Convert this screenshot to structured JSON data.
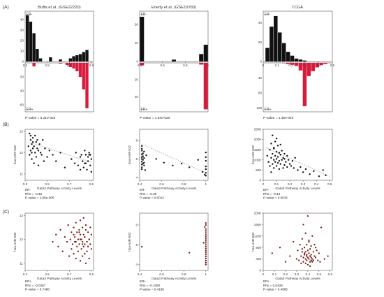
{
  "figure": {
    "panel_labels": [
      "(A)",
      "(B)",
      "(C)"
    ],
    "colors": {
      "er_neg": "#111111",
      "er_pos": "#d81b3c",
      "scatter_b": "#111111",
      "scatter_c": "#7a1a1a",
      "fit_line": "#9a9a9a"
    },
    "columns": [
      {
        "title": "Buffa et al. (GSE22220)"
      },
      {
        "title": "Enerly et al. (GSE19783)"
      },
      {
        "title": "TCGA"
      }
    ]
  },
  "chart_data": [
    {
      "type": "bar",
      "panel": "A",
      "column": 0,
      "top_label": "ER-",
      "bottom_label": "ER+",
      "bins_x": [
        0.32,
        0.35,
        0.38,
        0.41,
        0.44,
        0.47,
        0.5,
        0.53,
        0.56,
        0.59,
        0.62,
        0.65,
        0.68,
        0.71,
        0.74,
        0.77,
        0.8,
        0.83,
        0.86,
        0.89
      ],
      "er_neg": [
        44,
        38,
        27,
        12,
        3,
        0,
        0,
        4,
        0,
        0,
        2,
        0,
        0,
        3,
        5,
        6,
        7,
        9,
        11,
        0
      ],
      "er_pos": [
        0,
        0,
        5,
        0,
        0,
        0,
        0,
        0,
        0,
        0,
        1,
        0,
        3,
        6,
        8,
        12,
        20,
        38,
        65,
        0
      ],
      "x_ticks": [
        "0.3",
        "0.5",
        "0.7",
        "0.9"
      ],
      "x_tick_vals": [
        0.3,
        0.5,
        0.7,
        0.9
      ],
      "xlim": [
        0.3,
        0.92
      ],
      "top_y_ticks": [
        "40",
        "30",
        "20",
        "10",
        "0"
      ],
      "top_y_vals": [
        40,
        30,
        20,
        10,
        0
      ],
      "top_ylim": [
        0,
        48
      ],
      "bottom_y_ticks": [
        "20",
        "40",
        "60"
      ],
      "bottom_y_vals": [
        20,
        40,
        60
      ],
      "bottom_ylim": [
        0,
        70
      ],
      "pvalue": "P-value = 6.21e-025"
    },
    {
      "type": "bar",
      "panel": "A",
      "column": 1,
      "top_label": "ER-",
      "bottom_label": "ER+",
      "bins_x": [
        0.42,
        0.46,
        0.5,
        0.54,
        0.58,
        0.62,
        0.66,
        0.7,
        0.74,
        0.78,
        0.82,
        0.86,
        0.9,
        0.94,
        0.98
      ],
      "er_neg": [
        24,
        0,
        0,
        0,
        0,
        0,
        0,
        1,
        0,
        0,
        0,
        0,
        0,
        4,
        9
      ],
      "er_pos": [
        3,
        0,
        0,
        0,
        0,
        0,
        0,
        0,
        0,
        0,
        0,
        0,
        0,
        2,
        55
      ],
      "x_ticks": [
        "0.4",
        "0.6",
        "0.8",
        "1"
      ],
      "x_tick_vals": [
        0.4,
        0.6,
        0.8,
        1.0
      ],
      "xlim": [
        0.4,
        1.0
      ],
      "top_y_ticks": [
        "20",
        "10",
        "0"
      ],
      "top_y_vals": [
        20,
        10,
        0
      ],
      "top_ylim": [
        0,
        27
      ],
      "bottom_y_ticks": [
        "20",
        "40"
      ],
      "bottom_y_vals": [
        20,
        40
      ],
      "bottom_ylim": [
        0,
        58
      ],
      "pvalue": "P-value = 1.64e-020"
    },
    {
      "type": "bar",
      "panel": "A",
      "column": 2,
      "top_label": "ER-",
      "bottom_label": "ER+",
      "bins_x": [
        0.03,
        0.06,
        0.09,
        0.12,
        0.15,
        0.18,
        0.21,
        0.24,
        0.27,
        0.3,
        0.33,
        0.36,
        0.39,
        0.42,
        0.45,
        0.48
      ],
      "er_neg": [
        14,
        36,
        47,
        30,
        19,
        10,
        6,
        3,
        2,
        1,
        0,
        0,
        0,
        0,
        0,
        0
      ],
      "er_pos": [
        0,
        0,
        0,
        0,
        1,
        3,
        5,
        8,
        20,
        115,
        35,
        22,
        12,
        6,
        3,
        0
      ],
      "x_ticks": [
        "0",
        "0.1",
        "0.2",
        "0.3",
        "0.4",
        "0.5"
      ],
      "x_tick_vals": [
        0,
        0.1,
        0.2,
        0.3,
        0.4,
        0.5
      ],
      "xlim": [
        0,
        0.5
      ],
      "top_y_ticks": [
        "40",
        "20",
        "0"
      ],
      "top_y_vals": [
        40,
        20,
        0
      ],
      "top_ylim": [
        0,
        52
      ],
      "bottom_y_ticks": [
        "40",
        "80",
        "120"
      ],
      "bottom_y_vals": [
        40,
        80,
        120
      ],
      "bottom_ylim": [
        0,
        130
      ],
      "pvalue": "P-value = 1.45e-022"
    },
    {
      "type": "scatter",
      "panel": "B",
      "column": 0,
      "xlabel": "Gata3 Pathway Activity Levels",
      "ylabel": "hsa-miR-532",
      "xlim": [
        0.3,
        0.92
      ],
      "ylim": [
        10.7,
        13.1
      ],
      "x_ticks": [
        "0.3",
        "0.5",
        "0.7",
        "0.9"
      ],
      "x_tick_vals": [
        0.3,
        0.5,
        0.7,
        0.9
      ],
      "y_ticks": [
        "13",
        "12",
        "11"
      ],
      "y_tick_vals": [
        13,
        12,
        11
      ],
      "fit": [
        [
          0.33,
          12.5
        ],
        [
          0.9,
          11.55
        ]
      ],
      "x": [
        0.33,
        0.34,
        0.34,
        0.35,
        0.35,
        0.35,
        0.36,
        0.36,
        0.36,
        0.37,
        0.37,
        0.37,
        0.38,
        0.38,
        0.39,
        0.39,
        0.4,
        0.4,
        0.41,
        0.41,
        0.42,
        0.42,
        0.43,
        0.44,
        0.45,
        0.46,
        0.47,
        0.48,
        0.5,
        0.52,
        0.55,
        0.58,
        0.62,
        0.66,
        0.72,
        0.75,
        0.76,
        0.78,
        0.8,
        0.81,
        0.82,
        0.83,
        0.84,
        0.85,
        0.85,
        0.86,
        0.87,
        0.87,
        0.88,
        0.89,
        0.89,
        0.9,
        0.9,
        0.88,
        0.84,
        0.8
      ],
      "y": [
        12.3,
        12.9,
        11.9,
        12.6,
        12.1,
        12.8,
        12.4,
        11.7,
        12.0,
        12.7,
        12.2,
        12.5,
        11.5,
        12.3,
        12.8,
        12.0,
        12.5,
        11.8,
        12.2,
        12.6,
        12.1,
        11.4,
        12.4,
        12.0,
        11.9,
        12.6,
        11.6,
        12.2,
        11.8,
        12.1,
        11.9,
        11.6,
        12.0,
        11.3,
        11.7,
        11.5,
        12.0,
        11.4,
        11.8,
        11.9,
        11.6,
        11.3,
        12.1,
        11.5,
        11.9,
        11.2,
        11.8,
        11.6,
        12.0,
        11.4,
        11.9,
        11.7,
        11.1,
        11.9,
        11.5,
        11.2
      ],
      "stats": [
        "ER-",
        "Rho = -0.45",
        "P-value = 2.96e-005"
      ]
    },
    {
      "type": "scatter",
      "panel": "B",
      "column": 1,
      "xlabel": "Gata3 Pathway Activity Levels",
      "ylabel": "hsa-miR-532",
      "xlim": [
        0.4,
        1.02
      ],
      "ylim": [
        3.7,
        9.2
      ],
      "x_ticks": [
        "0.4",
        "0.6",
        "0.8",
        "1"
      ],
      "x_tick_vals": [
        0.4,
        0.6,
        0.8,
        1.0
      ],
      "y_ticks": [
        "8",
        "6",
        "4"
      ],
      "y_tick_vals": [
        8,
        6,
        4
      ],
      "fit": [
        [
          0.42,
          7.6
        ],
        [
          1.0,
          4.5
        ]
      ],
      "x": [
        0.42,
        0.42,
        0.42,
        0.42,
        0.42,
        0.42,
        0.42,
        0.42,
        0.42,
        0.42,
        0.43,
        0.43,
        0.43,
        0.43,
        0.44,
        0.44,
        0.44,
        0.44,
        0.45,
        0.46,
        0.55,
        0.62,
        0.7,
        0.78,
        0.85,
        0.93,
        0.97,
        0.99,
        1.0,
        1.0,
        1.0,
        1.0,
        1.0,
        1.0,
        1.0
      ],
      "y": [
        7.4,
        6.9,
        6.5,
        6.2,
        6.0,
        5.7,
        5.4,
        5.1,
        4.9,
        7.1,
        6.6,
        6.3,
        5.9,
        5.5,
        6.8,
        6.1,
        5.6,
        5.3,
        4.8,
        6.4,
        6.0,
        5.6,
        5.3,
        5.5,
        5.1,
        5.9,
        4.6,
        4.3,
        6.7,
        5.8,
        5.2,
        4.9,
        4.5,
        4.2,
        6.2
      ],
      "stats": [
        "ER-",
        "Rho = -0.39",
        "P-value = 0.0012"
      ]
    },
    {
      "type": "scatter",
      "panel": "B",
      "column": 2,
      "xlabel": "Gata3 Pathway Activity Levels",
      "ylabel": "hsa-miR-532",
      "xlim": [
        0,
        0.52
      ],
      "ylim": [
        0,
        2500
      ],
      "x_ticks": [
        "0",
        "0.1",
        "0.2",
        "0.3",
        "0.4",
        "0.5"
      ],
      "x_tick_vals": [
        0,
        0.1,
        0.2,
        0.3,
        0.4,
        0.5
      ],
      "y_ticks": [
        "2500",
        "2000",
        "1500",
        "1000",
        "500",
        "0"
      ],
      "y_tick_vals": [
        2500,
        2000,
        1500,
        1000,
        500,
        0
      ],
      "fit": [
        [
          0.02,
          1600
        ],
        [
          0.5,
          200
        ]
      ],
      "x": [
        0.03,
        0.04,
        0.05,
        0.05,
        0.06,
        0.06,
        0.07,
        0.07,
        0.07,
        0.08,
        0.08,
        0.08,
        0.09,
        0.09,
        0.09,
        0.1,
        0.1,
        0.1,
        0.11,
        0.11,
        0.11,
        0.12,
        0.12,
        0.12,
        0.13,
        0.13,
        0.14,
        0.14,
        0.15,
        0.15,
        0.16,
        0.16,
        0.17,
        0.18,
        0.18,
        0.19,
        0.2,
        0.21,
        0.22,
        0.23,
        0.24,
        0.26,
        0.28,
        0.3,
        0.32,
        0.35,
        0.38,
        0.42,
        0.45,
        0.47,
        0.1,
        0.08,
        0.06,
        0.13,
        0.16
      ],
      "y": [
        1200,
        900,
        1500,
        700,
        1800,
        1100,
        2200,
        1300,
        800,
        1600,
        1000,
        600,
        1900,
        1200,
        900,
        1400,
        1050,
        700,
        1700,
        1150,
        850,
        1350,
        950,
        550,
        1250,
        800,
        1450,
        1000,
        1100,
        600,
        1300,
        750,
        900,
        1200,
        650,
        1000,
        800,
        700,
        950,
        600,
        1100,
        500,
        650,
        400,
        550,
        300,
        450,
        200,
        500,
        250,
        2050,
        1550,
        400,
        1750,
        1050
      ],
      "stats": [
        "ER-",
        "Rho = -0.42",
        "P-value = 0.0015"
      ]
    },
    {
      "type": "scatter",
      "panel": "C",
      "column": 0,
      "xlabel": "Gata3 Pathway Activity Levels",
      "ylabel": "hsa-miR-532",
      "xlim": [
        0.3,
        0.92
      ],
      "ylim": [
        10.7,
        13.1
      ],
      "x_ticks": [
        "0.3",
        "0.5",
        "0.7",
        "0.9"
      ],
      "x_tick_vals": [
        0.3,
        0.5,
        0.7,
        0.9
      ],
      "y_ticks": [
        "13",
        "12",
        "11"
      ],
      "y_tick_vals": [
        13,
        12,
        11
      ],
      "x": [
        0.55,
        0.58,
        0.6,
        0.62,
        0.64,
        0.66,
        0.68,
        0.69,
        0.7,
        0.71,
        0.72,
        0.72,
        0.73,
        0.74,
        0.74,
        0.75,
        0.75,
        0.76,
        0.76,
        0.77,
        0.77,
        0.78,
        0.78,
        0.79,
        0.79,
        0.8,
        0.8,
        0.8,
        0.81,
        0.81,
        0.82,
        0.82,
        0.82,
        0.83,
        0.83,
        0.83,
        0.84,
        0.84,
        0.84,
        0.85,
        0.85,
        0.85,
        0.86,
        0.86,
        0.87,
        0.87,
        0.88,
        0.88,
        0.89,
        0.89,
        0.9,
        0.9,
        0.76,
        0.8,
        0.84,
        0.74,
        0.86,
        0.79,
        0.82,
        0.88
      ],
      "y": [
        11.9,
        12.2,
        11.7,
        12.4,
        11.5,
        12.1,
        11.9,
        12.6,
        11.3,
        12.0,
        12.3,
        11.6,
        11.8,
        12.5,
        11.4,
        12.1,
        11.9,
        12.7,
        11.2,
        12.3,
        11.7,
        12.0,
        11.5,
        12.4,
        11.8,
        12.2,
        11.1,
        12.8,
        11.6,
        12.0,
        12.5,
        11.3,
        11.9,
        12.2,
        11.7,
        12.9,
        11.4,
        12.1,
        11.8,
        12.4,
        11.0,
        12.6,
        11.9,
        11.5,
        12.3,
        11.7,
        12.0,
        11.2,
        12.5,
        11.8,
        11.6,
        12.2,
        11.9,
        12.0,
        12.1,
        12.2,
        11.9,
        12.3,
        11.8,
        12.0
      ],
      "stats": [
        "ER+",
        "Rho = -0.0267",
        "P-value = 0.7488"
      ]
    },
    {
      "type": "scatter",
      "panel": "C",
      "column": 1,
      "xlabel": "Gata3 Pathway Activity Levels",
      "ylabel": "hsa-miR-532",
      "xlim": [
        0.4,
        1.02
      ],
      "ylim": [
        3.7,
        6.6
      ],
      "x_ticks": [
        "0.4",
        "0.6",
        "0.8",
        "1"
      ],
      "x_tick_vals": [
        0.4,
        0.6,
        0.8,
        1.0
      ],
      "y_ticks": [
        "6",
        "5",
        "4"
      ],
      "y_tick_vals": [
        6,
        5,
        4
      ],
      "x": [
        0.42,
        0.85,
        0.98,
        0.99,
        1.0,
        1.0,
        1.0,
        1.0,
        1.0,
        1.0,
        1.0,
        1.0,
        1.0,
        1.0,
        1.0,
        1.0,
        1.0,
        1.0,
        1.0,
        1.0,
        1.0,
        1.0,
        1.0,
        1.0,
        1.0
      ],
      "y": [
        4.9,
        4.6,
        5.1,
        5.9,
        6.1,
        6.0,
        5.8,
        5.7,
        5.6,
        5.5,
        5.4,
        5.3,
        5.2,
        5.1,
        5.0,
        4.9,
        4.8,
        4.7,
        4.6,
        4.5,
        4.4,
        4.3,
        4.2,
        4.1,
        4.0
      ],
      "stats": [
        "ER+",
        "Rho = -0.1050",
        "P-value = 0.4166"
      ]
    },
    {
      "type": "scatter",
      "panel": "C",
      "column": 2,
      "xlabel": "Gata3 Pathway Activity Levels",
      "ylabel": "hsa-miR-532",
      "xlim": [
        0,
        0.62
      ],
      "ylim": [
        0,
        2000
      ],
      "x_ticks": [
        "0",
        "0.1",
        "0.2",
        "0.3",
        "0.4",
        "0.5",
        "0.6"
      ],
      "x_tick_vals": [
        0,
        0.1,
        0.2,
        0.3,
        0.4,
        0.5,
        0.6
      ],
      "y_ticks": [
        "2000",
        "1600",
        "1200",
        "800",
        "400",
        "0"
      ],
      "y_tick_vals": [
        2000,
        1600,
        1200,
        800,
        400,
        0
      ],
      "x": [
        0.08,
        0.15,
        0.2,
        0.24,
        0.27,
        0.3,
        0.31,
        0.32,
        0.33,
        0.34,
        0.34,
        0.35,
        0.35,
        0.36,
        0.36,
        0.37,
        0.37,
        0.38,
        0.38,
        0.38,
        0.39,
        0.39,
        0.39,
        0.4,
        0.4,
        0.4,
        0.41,
        0.41,
        0.41,
        0.42,
        0.42,
        0.42,
        0.43,
        0.43,
        0.43,
        0.44,
        0.44,
        0.45,
        0.45,
        0.46,
        0.46,
        0.47,
        0.48,
        0.49,
        0.5,
        0.51,
        0.52,
        0.55,
        0.58,
        0.36,
        0.4,
        0.44,
        0.38,
        0.42,
        0.35,
        0.47,
        0.39,
        0.41,
        0.43,
        0.37
      ],
      "y": [
        600,
        800,
        300,
        500,
        1000,
        400,
        700,
        350,
        900,
        500,
        250,
        650,
        1100,
        450,
        300,
        800,
        550,
        400,
        1300,
        650,
        350,
        900,
        500,
        450,
        1900,
        700,
        400,
        600,
        1000,
        500,
        300,
        750,
        450,
        850,
        550,
        400,
        1200,
        650,
        350,
        500,
        900,
        450,
        700,
        350,
        600,
        300,
        1500,
        400,
        500,
        1600,
        200,
        300,
        250,
        150,
        750,
        800,
        550,
        1050,
        350,
        600
      ],
      "stats": [
        "ER+",
        "Rho = 0.0428",
        "P-value = 0.4895"
      ]
    }
  ]
}
